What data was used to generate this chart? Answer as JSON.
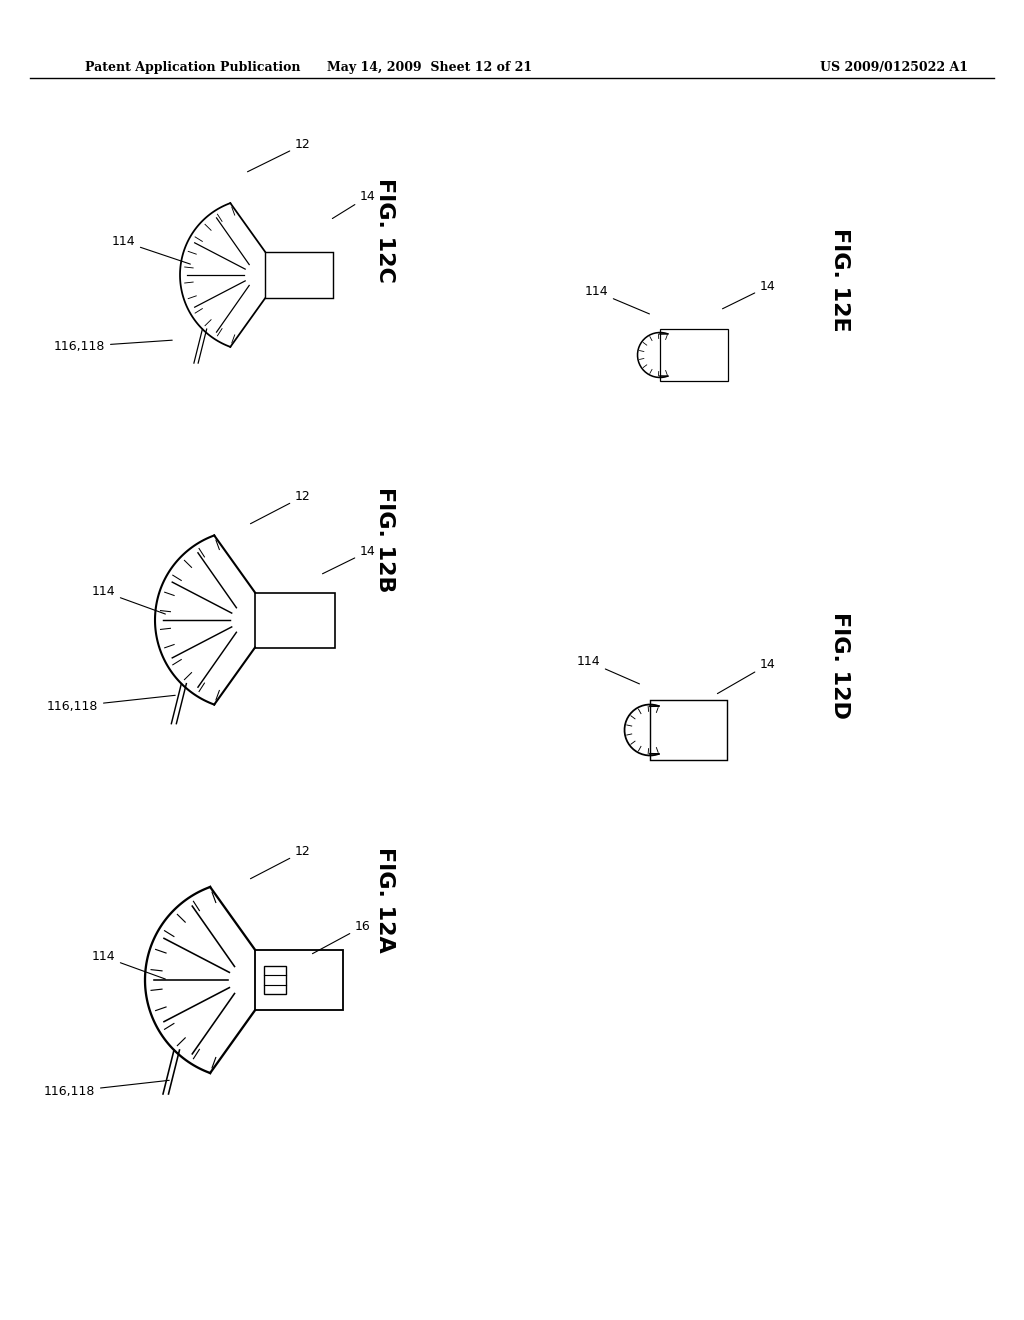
{
  "page_title_left": "Patent Application Publication",
  "page_title_mid": "May 14, 2009  Sheet 12 of 21",
  "page_title_right": "US 2009/0125022 A1",
  "background_color": "#ffffff",
  "line_color": "#000000",
  "fig_labels": [
    "FIG. 12A",
    "FIG. 12B",
    "FIG. 12C",
    "FIG. 12D",
    "FIG. 12E"
  ],
  "ref_numbers": {
    "12": "12",
    "14": "14",
    "16": "16",
    "114": "114",
    "116118": "116,118"
  }
}
